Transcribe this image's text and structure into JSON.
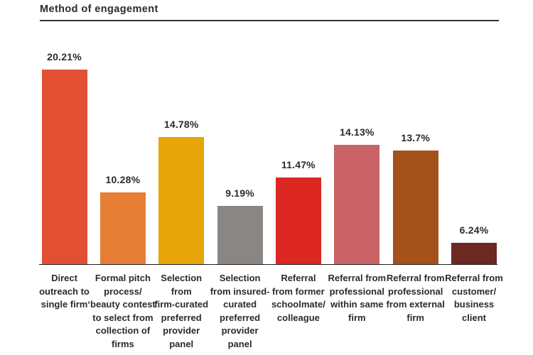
{
  "chart_data": {
    "type": "bar",
    "title": "Method of engagement",
    "xlabel": "",
    "ylabel": "",
    "grid": false,
    "legend": "none",
    "ylim": [
      4.5,
      21.7
    ],
    "text_color": "#2b2b2b",
    "categories": [
      "Direct\noutreach to\nsingle firm",
      "Formal pitch\nprocess/\n‘beauty contest’\nto select from\ncollection of\nfirms",
      "Selection\nfrom\nfirm-curated\npreferred\nprovider\npanel",
      "Selection\nfrom insured-\ncurated\npreferred\nprovider\npanel",
      "Referral\nfrom former\nschoolmate/\ncolleague",
      "Referral from\nprofessional\nwithin same\nfirm",
      "Referral from\nprofessional\nfrom external\nfirm",
      "Referral from\ncustomer/\nbusiness\nclient"
    ],
    "values": [
      20.21,
      10.28,
      14.78,
      9.19,
      11.47,
      14.13,
      13.7,
      6.24
    ],
    "value_labels": [
      "20.21%",
      "10.28%",
      "14.78%",
      "9.19%",
      "11.47%",
      "14.13%",
      "13.7%",
      "6.24%"
    ],
    "bar_colors": [
      "#E25033",
      "#E67E35",
      "#E6A608",
      "#8A8683",
      "#DC2722",
      "#C96366",
      "#A4511B",
      "#6B2921"
    ]
  }
}
